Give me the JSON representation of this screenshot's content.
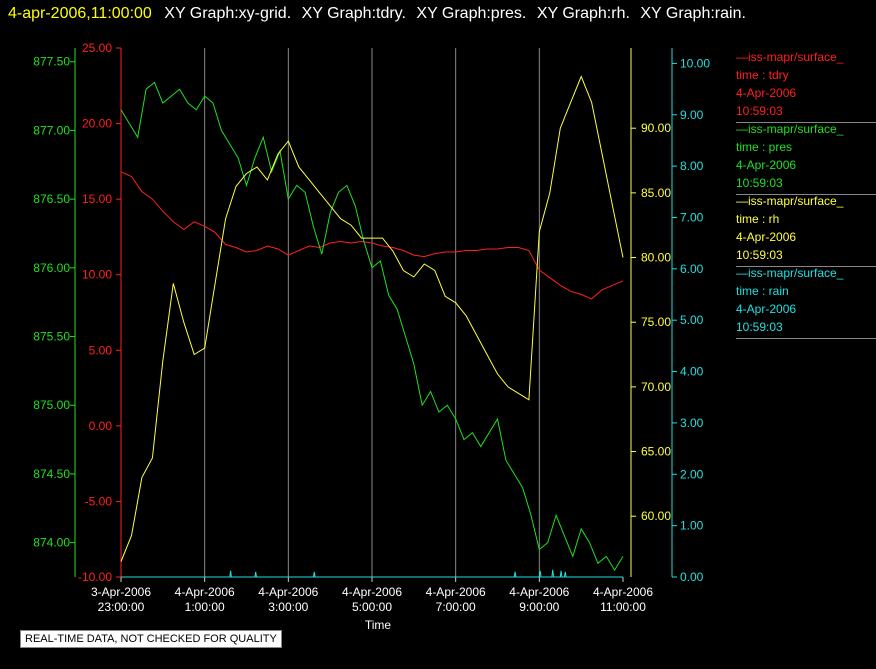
{
  "header": {
    "timestamp": "4-apr-2006,11:00:00",
    "graphs": [
      "XY Graph:xy-grid.",
      "XY Graph:tdry.",
      "XY Graph:pres.",
      "XY Graph:rh.",
      "XY Graph:rain."
    ]
  },
  "legend": [
    {
      "source": "—iss-mapr/surface_",
      "var": "time : tdry",
      "date": "4-Apr-2006",
      "time": "10:59:03",
      "color": "#ff2020"
    },
    {
      "source": "—iss-mapr/surface_",
      "var": "time : pres",
      "date": "4-Apr-2006",
      "time": "10:59:03",
      "color": "#20e020"
    },
    {
      "source": "—iss-mapr/surface_",
      "var": "time : rh",
      "date": "4-Apr-2006",
      "time": "10:59:03",
      "color": "#ffff40"
    },
    {
      "source": "—iss-mapr/surface_",
      "var": "time : rain",
      "date": "4-Apr-2006",
      "time": "10:59:03",
      "color": "#20e0e0"
    }
  ],
  "disclaimer": "REAL-TIME DATA, NOT CHECKED FOR QUALITY",
  "chart_data": {
    "type": "line",
    "xlabel": "Time",
    "x_ticks": [
      {
        "h": 0,
        "l1": "3-Apr-2006",
        "l2": "23:00:00"
      },
      {
        "h": 2,
        "l1": "4-Apr-2006",
        "l2": "1:00:00"
      },
      {
        "h": 4,
        "l1": "4-Apr-2006",
        "l2": "3:00:00"
      },
      {
        "h": 6,
        "l1": "4-Apr-2006",
        "l2": "5:00:00"
      },
      {
        "h": 8,
        "l1": "4-Apr-2006",
        "l2": "7:00:00"
      },
      {
        "h": 10,
        "l1": "4-Apr-2006",
        "l2": "9:00:00"
      },
      {
        "h": 12,
        "l1": "4-Apr-2006",
        "l2": "11:00:00"
      }
    ],
    "x_hours_range": [
      0,
      12
    ],
    "grid_vlines": true,
    "axes": {
      "tdry": {
        "ylim": [
          -10,
          25
        ],
        "ticks": [
          "25.00",
          "20.00",
          "15.00",
          "10.00",
          "5.00",
          "0.00",
          "-5.00",
          "-10.00"
        ],
        "tick_values": [
          25,
          20,
          15,
          10,
          5,
          0,
          -5,
          -10
        ],
        "color": "#ff2020"
      },
      "pres": {
        "ylim": [
          873.75,
          877.6
        ],
        "ticks": [
          "877.50",
          "877.00",
          "876.50",
          "876.00",
          "875.50",
          "875.00",
          "874.50",
          "874.00"
        ],
        "tick_values": [
          877.5,
          877,
          876.5,
          876,
          875.5,
          875,
          874.5,
          874
        ],
        "color": "#20e020"
      },
      "rh": {
        "ylim": [
          55.3,
          96.2
        ],
        "ticks": [
          "90.00",
          "85.00",
          "80.00",
          "75.00",
          "70.00",
          "65.00",
          "60.00"
        ],
        "tick_values": [
          90,
          85,
          80,
          75,
          70,
          65,
          60
        ],
        "color": "#ffff40"
      },
      "rain": {
        "ylim": [
          0,
          10.3
        ],
        "ticks": [
          "10.00",
          "9.00",
          "8.00",
          "7.00",
          "6.00",
          "5.00",
          "4.00",
          "3.00",
          "2.00",
          "1.00",
          "0.00"
        ],
        "tick_values": [
          10,
          9,
          8,
          7,
          6,
          5,
          4,
          3,
          2,
          1,
          0
        ],
        "color": "#20e0e0"
      }
    },
    "series": [
      {
        "name": "time : tdry",
        "axis": "tdry",
        "x": [
          0,
          0.25,
          0.5,
          0.75,
          1.0,
          1.25,
          1.5,
          1.75,
          2.0,
          2.25,
          2.5,
          2.75,
          3.0,
          3.25,
          3.5,
          3.75,
          4.0,
          4.25,
          4.5,
          4.75,
          5.0,
          5.25,
          5.5,
          5.75,
          6.0,
          6.25,
          6.5,
          6.75,
          7.0,
          7.25,
          7.5,
          7.75,
          8.0,
          8.25,
          8.5,
          8.75,
          9.0,
          9.25,
          9.5,
          9.75,
          10.0,
          10.25,
          10.5,
          10.75,
          11.0,
          11.25,
          11.5,
          11.75,
          12.0
        ],
        "y": [
          16.8,
          16.5,
          15.5,
          15.0,
          14.2,
          13.5,
          13.0,
          13.5,
          13.2,
          12.8,
          12.0,
          11.8,
          11.5,
          11.6,
          11.9,
          11.7,
          11.3,
          11.6,
          11.9,
          11.8,
          12.1,
          12.2,
          12.1,
          12.2,
          12.1,
          11.9,
          11.8,
          11.6,
          11.3,
          11.2,
          11.4,
          11.5,
          11.5,
          11.6,
          11.6,
          11.7,
          11.7,
          11.8,
          11.8,
          11.6,
          10.3,
          9.8,
          9.3,
          8.9,
          8.7,
          8.4,
          9.0,
          9.3,
          9.6
        ]
      },
      {
        "name": "time : pres",
        "axis": "pres",
        "x": [
          0,
          0.2,
          0.4,
          0.6,
          0.8,
          1.0,
          1.2,
          1.4,
          1.6,
          1.8,
          2.0,
          2.2,
          2.4,
          2.6,
          2.8,
          3.0,
          3.2,
          3.4,
          3.6,
          3.8,
          4.0,
          4.2,
          4.4,
          4.6,
          4.8,
          5.0,
          5.2,
          5.4,
          5.6,
          5.8,
          6.0,
          6.2,
          6.4,
          6.6,
          6.8,
          7.0,
          7.2,
          7.4,
          7.6,
          7.8,
          8.0,
          8.2,
          8.4,
          8.6,
          8.8,
          9.0,
          9.2,
          9.4,
          9.6,
          9.8,
          10.0,
          10.2,
          10.4,
          10.6,
          10.8,
          11.0,
          11.2,
          11.4,
          11.6,
          11.8,
          12.0
        ],
        "y": [
          877.15,
          877.05,
          876.95,
          877.3,
          877.35,
          877.2,
          877.25,
          877.3,
          877.2,
          877.15,
          877.25,
          877.2,
          877.0,
          876.9,
          876.8,
          876.6,
          876.8,
          876.95,
          876.7,
          876.85,
          876.5,
          876.6,
          876.55,
          876.3,
          876.1,
          876.4,
          876.55,
          876.6,
          876.45,
          876.2,
          876.0,
          876.05,
          875.8,
          875.7,
          875.5,
          875.3,
          875.0,
          875.1,
          874.95,
          875.0,
          874.9,
          874.75,
          874.8,
          874.7,
          874.8,
          874.9,
          874.6,
          874.5,
          874.4,
          874.2,
          873.95,
          874.0,
          874.2,
          874.05,
          873.9,
          874.1,
          874.0,
          873.85,
          873.9,
          873.8,
          873.9
        ]
      },
      {
        "name": "time : rh",
        "axis": "rh",
        "x": [
          0,
          0.25,
          0.5,
          0.75,
          1.0,
          1.25,
          1.5,
          1.75,
          2.0,
          2.25,
          2.5,
          2.75,
          3.0,
          3.25,
          3.5,
          3.75,
          4.0,
          4.25,
          4.5,
          4.75,
          5.0,
          5.25,
          5.5,
          5.75,
          6.0,
          6.25,
          6.5,
          6.75,
          7.0,
          7.25,
          7.5,
          7.75,
          8.0,
          8.25,
          8.5,
          8.75,
          9.0,
          9.25,
          9.5,
          9.75,
          10.0,
          10.25,
          10.5,
          10.75,
          11.0,
          11.25,
          11.5,
          11.75,
          12.0
        ],
        "y": [
          56.5,
          58.5,
          63,
          64.5,
          72,
          78,
          75,
          72.5,
          73,
          78,
          83,
          85.5,
          86.5,
          87,
          86,
          88,
          89,
          87,
          86,
          85,
          84,
          83,
          82.5,
          81.5,
          81.5,
          81.5,
          80.5,
          79,
          78.5,
          79.5,
          79,
          77,
          76.5,
          75.5,
          74,
          72.5,
          71,
          70,
          69.5,
          69,
          82,
          85,
          90,
          92,
          94,
          92,
          88,
          84,
          80
        ]
      },
      {
        "name": "time : rain",
        "axis": "rain",
        "x": [
          0,
          2.6,
          2.62,
          2.64,
          3.2,
          3.22,
          3.24,
          4.6,
          4.62,
          4.64,
          9.4,
          9.42,
          9.44,
          10.0,
          10.02,
          10.04,
          10.3,
          10.32,
          10.34,
          10.5,
          10.52,
          10.54,
          10.6,
          10.62,
          10.64,
          12.0
        ],
        "y": [
          0,
          0,
          0.12,
          0,
          0,
          0.1,
          0,
          0,
          0.1,
          0,
          0,
          0.1,
          0,
          0,
          0.12,
          0,
          0,
          0.14,
          0,
          0,
          0.12,
          0,
          0,
          0.1,
          0,
          0
        ]
      }
    ]
  }
}
